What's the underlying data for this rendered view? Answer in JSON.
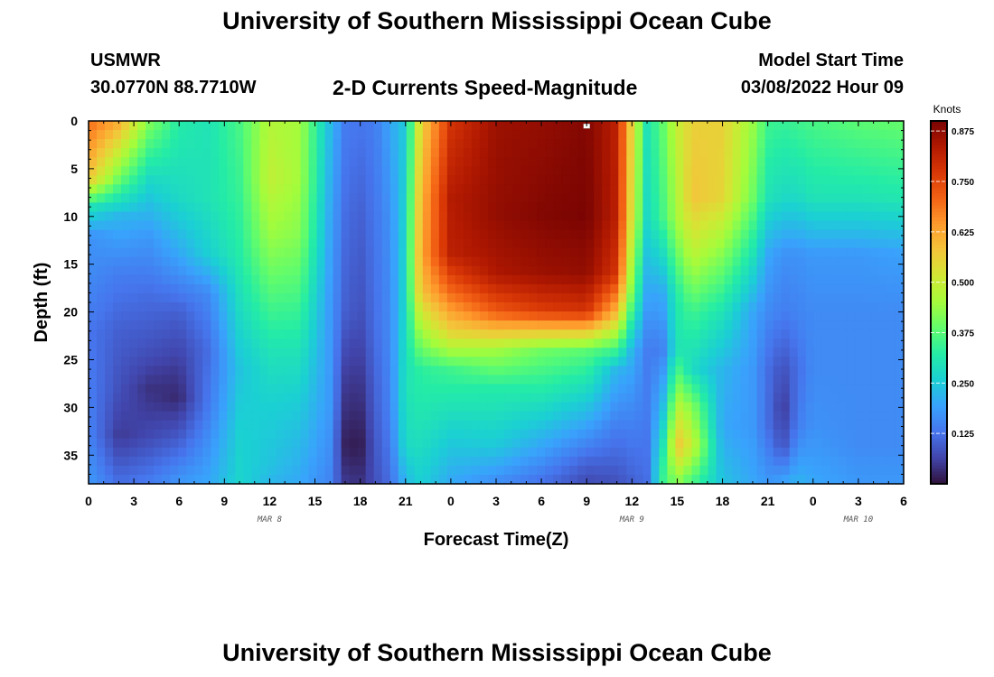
{
  "header": {
    "main_title": "University of Southern Mississippi Ocean Cube",
    "station": "USMWR",
    "coords": "30.0770N  88.7710W",
    "chart_title": "2-D Currents Speed-Magnitude",
    "start_label": "Model Start Time",
    "start_value": "03/08/2022 Hour 09"
  },
  "footer": {
    "main_title": "University of Southern Mississippi Ocean Cube"
  },
  "chart_data": {
    "type": "heatmap",
    "title": "2-D Currents Speed-Magnitude",
    "xlabel": "Forecast Time(Z)",
    "ylabel": "Depth (ft)",
    "x_tick_labels": [
      "0",
      "3",
      "6",
      "9",
      "12",
      "15",
      "18",
      "21",
      "0",
      "3",
      "6",
      "9",
      "12",
      "15",
      "18",
      "21",
      "0",
      "3",
      "6"
    ],
    "x_range_hours": [
      0,
      54
    ],
    "day_labels": [
      {
        "text": "MAR 8",
        "hour": 12
      },
      {
        "text": "MAR 9",
        "hour": 36
      },
      {
        "text": "MAR 10",
        "hour": 51
      }
    ],
    "y_ticks": [
      0,
      5,
      10,
      15,
      20,
      25,
      30,
      35
    ],
    "y_range_ft": [
      0,
      38
    ],
    "y_inverted": true,
    "colorbar": {
      "unit": "Knots",
      "ticks": [
        0.125,
        0.25,
        0.375,
        0.5,
        0.625,
        0.75,
        0.875
      ],
      "tick_labels": [
        "0.125",
        "0.250",
        "0.375",
        "0.500",
        "0.625",
        "0.750",
        "0.875"
      ],
      "range": [
        0.0,
        0.9
      ],
      "colormap": [
        "#30123b",
        "#4145ab",
        "#4675ed",
        "#39a2fc",
        "#1bcfd4",
        "#24eca6",
        "#61fc6c",
        "#a4fc3b",
        "#d1e834",
        "#f3c63a",
        "#fe9b2d",
        "#f36315",
        "#d93806",
        "#b11901",
        "#7a0402"
      ]
    },
    "marker": {
      "hour": 33,
      "depth_ft": 0.3
    },
    "time_profiles": [
      {
        "hour": 0,
        "profile": [
          [
            0,
            0.7
          ],
          [
            6,
            0.58
          ],
          [
            9,
            0.3
          ],
          [
            12,
            0.17
          ],
          [
            16,
            0.16
          ],
          [
            22,
            0.13
          ],
          [
            28,
            0.14
          ],
          [
            33,
            0.15
          ],
          [
            38,
            0.18
          ]
        ]
      },
      {
        "hour": 2,
        "profile": [
          [
            0,
            0.62
          ],
          [
            6,
            0.4
          ],
          [
            10,
            0.22
          ],
          [
            16,
            0.14
          ],
          [
            22,
            0.1
          ],
          [
            28,
            0.08
          ],
          [
            33,
            0.05
          ],
          [
            38,
            0.12
          ]
        ]
      },
      {
        "hour": 4,
        "profile": [
          [
            0,
            0.42
          ],
          [
            6,
            0.28
          ],
          [
            12,
            0.18
          ],
          [
            18,
            0.12
          ],
          [
            24,
            0.08
          ],
          [
            28,
            0.04
          ],
          [
            33,
            0.07
          ],
          [
            38,
            0.14
          ]
        ]
      },
      {
        "hour": 6,
        "profile": [
          [
            0,
            0.32
          ],
          [
            8,
            0.28
          ],
          [
            14,
            0.2
          ],
          [
            20,
            0.1
          ],
          [
            26,
            0.05
          ],
          [
            29,
            0.03
          ],
          [
            33,
            0.09
          ],
          [
            38,
            0.18
          ]
        ]
      },
      {
        "hour": 8,
        "profile": [
          [
            0,
            0.3
          ],
          [
            8,
            0.3
          ],
          [
            14,
            0.26
          ],
          [
            18,
            0.16
          ],
          [
            24,
            0.12
          ],
          [
            30,
            0.14
          ],
          [
            35,
            0.18
          ],
          [
            38,
            0.2
          ]
        ]
      },
      {
        "hour": 10,
        "profile": [
          [
            0,
            0.36
          ],
          [
            8,
            0.34
          ],
          [
            14,
            0.32
          ],
          [
            20,
            0.28
          ],
          [
            26,
            0.24
          ],
          [
            32,
            0.26
          ],
          [
            38,
            0.27
          ]
        ]
      },
      {
        "hour": 12,
        "profile": [
          [
            0,
            0.47
          ],
          [
            6,
            0.49
          ],
          [
            12,
            0.44
          ],
          [
            18,
            0.37
          ],
          [
            24,
            0.3
          ],
          [
            30,
            0.26
          ],
          [
            36,
            0.24
          ],
          [
            38,
            0.22
          ]
        ]
      },
      {
        "hour": 14,
        "profile": [
          [
            0,
            0.45
          ],
          [
            6,
            0.45
          ],
          [
            12,
            0.42
          ],
          [
            18,
            0.36
          ],
          [
            24,
            0.3
          ],
          [
            30,
            0.25
          ],
          [
            38,
            0.2
          ]
        ]
      },
      {
        "hour": 16,
        "profile": [
          [
            0,
            0.23
          ],
          [
            10,
            0.2
          ],
          [
            20,
            0.18
          ],
          [
            30,
            0.18
          ],
          [
            38,
            0.15
          ]
        ]
      },
      {
        "hour": 17,
        "profile": [
          [
            0,
            0.14
          ],
          [
            10,
            0.12
          ],
          [
            20,
            0.1
          ],
          [
            26,
            0.06
          ],
          [
            30,
            0.04
          ],
          [
            34,
            0.02
          ],
          [
            38,
            0.05
          ]
        ]
      },
      {
        "hour": 18,
        "profile": [
          [
            0,
            0.13
          ],
          [
            10,
            0.1
          ],
          [
            20,
            0.08
          ],
          [
            26,
            0.05
          ],
          [
            30,
            0.03
          ],
          [
            34,
            0.01
          ],
          [
            38,
            0.04
          ]
        ]
      },
      {
        "hour": 19,
        "profile": [
          [
            0,
            0.14
          ],
          [
            12,
            0.13
          ],
          [
            22,
            0.12
          ],
          [
            30,
            0.1
          ],
          [
            38,
            0.08
          ]
        ]
      },
      {
        "hour": 20,
        "profile": [
          [
            0,
            0.2
          ],
          [
            10,
            0.17
          ],
          [
            20,
            0.16
          ],
          [
            30,
            0.15
          ],
          [
            38,
            0.12
          ]
        ]
      },
      {
        "hour": 21,
        "profile": [
          [
            0,
            0.25
          ],
          [
            10,
            0.27
          ],
          [
            20,
            0.28
          ],
          [
            28,
            0.3
          ],
          [
            34,
            0.28
          ],
          [
            38,
            0.22
          ]
        ]
      },
      {
        "hour": 22,
        "profile": [
          [
            0,
            0.55
          ],
          [
            8,
            0.6
          ],
          [
            14,
            0.62
          ],
          [
            18,
            0.58
          ],
          [
            22,
            0.45
          ],
          [
            26,
            0.33
          ],
          [
            32,
            0.3
          ],
          [
            38,
            0.26
          ]
        ]
      },
      {
        "hour": 24,
        "profile": [
          [
            0,
            0.78
          ],
          [
            8,
            0.83
          ],
          [
            14,
            0.82
          ],
          [
            18,
            0.7
          ],
          [
            22,
            0.56
          ],
          [
            26,
            0.35
          ],
          [
            32,
            0.27
          ],
          [
            38,
            0.2
          ]
        ]
      },
      {
        "hour": 27,
        "profile": [
          [
            0,
            0.86
          ],
          [
            10,
            0.87
          ],
          [
            16,
            0.84
          ],
          [
            20,
            0.72
          ],
          [
            24,
            0.45
          ],
          [
            28,
            0.32
          ],
          [
            34,
            0.25
          ],
          [
            38,
            0.16
          ]
        ]
      },
      {
        "hour": 30,
        "profile": [
          [
            0,
            0.87
          ],
          [
            10,
            0.89
          ],
          [
            16,
            0.86
          ],
          [
            20,
            0.76
          ],
          [
            24,
            0.4
          ],
          [
            30,
            0.28
          ],
          [
            36,
            0.16
          ],
          [
            38,
            0.12
          ]
        ]
      },
      {
        "hour": 33,
        "profile": [
          [
            0,
            0.89
          ],
          [
            10,
            0.9
          ],
          [
            16,
            0.87
          ],
          [
            20,
            0.78
          ],
          [
            24,
            0.38
          ],
          [
            30,
            0.24
          ],
          [
            36,
            0.1
          ],
          [
            38,
            0.07
          ]
        ]
      },
      {
        "hour": 35,
        "profile": [
          [
            0,
            0.82
          ],
          [
            10,
            0.82
          ],
          [
            16,
            0.78
          ],
          [
            20,
            0.6
          ],
          [
            26,
            0.22
          ],
          [
            32,
            0.14
          ],
          [
            38,
            0.08
          ]
        ]
      },
      {
        "hour": 36,
        "profile": [
          [
            0,
            0.55
          ],
          [
            10,
            0.52
          ],
          [
            18,
            0.4
          ],
          [
            24,
            0.22
          ],
          [
            30,
            0.16
          ],
          [
            38,
            0.1
          ]
        ]
      },
      {
        "hour": 37,
        "profile": [
          [
            0,
            0.3
          ],
          [
            10,
            0.28
          ],
          [
            18,
            0.2
          ],
          [
            24,
            0.14
          ],
          [
            30,
            0.14
          ],
          [
            38,
            0.12
          ]
        ]
      },
      {
        "hour": 38,
        "profile": [
          [
            0,
            0.38
          ],
          [
            10,
            0.35
          ],
          [
            18,
            0.2
          ],
          [
            24,
            0.14
          ],
          [
            30,
            0.22
          ],
          [
            36,
            0.32
          ],
          [
            38,
            0.34
          ]
        ]
      },
      {
        "hour": 39,
        "profile": [
          [
            0,
            0.5
          ],
          [
            10,
            0.46
          ],
          [
            18,
            0.32
          ],
          [
            24,
            0.3
          ],
          [
            30,
            0.48
          ],
          [
            34,
            0.58
          ],
          [
            38,
            0.42
          ]
        ]
      },
      {
        "hour": 40,
        "profile": [
          [
            0,
            0.56
          ],
          [
            8,
            0.58
          ],
          [
            14,
            0.48
          ],
          [
            20,
            0.35
          ],
          [
            26,
            0.28
          ],
          [
            30,
            0.42
          ],
          [
            34,
            0.5
          ],
          [
            38,
            0.35
          ]
        ]
      },
      {
        "hour": 42,
        "profile": [
          [
            0,
            0.56
          ],
          [
            8,
            0.55
          ],
          [
            14,
            0.42
          ],
          [
            20,
            0.3
          ],
          [
            26,
            0.22
          ],
          [
            32,
            0.2
          ],
          [
            38,
            0.24
          ]
        ]
      },
      {
        "hour": 44,
        "profile": [
          [
            0,
            0.44
          ],
          [
            8,
            0.4
          ],
          [
            14,
            0.3
          ],
          [
            20,
            0.2
          ],
          [
            26,
            0.18
          ],
          [
            32,
            0.18
          ],
          [
            38,
            0.2
          ]
        ]
      },
      {
        "hour": 45,
        "profile": [
          [
            0,
            0.35
          ],
          [
            8,
            0.3
          ],
          [
            14,
            0.2
          ],
          [
            20,
            0.16
          ],
          [
            26,
            0.12
          ],
          [
            32,
            0.12
          ],
          [
            38,
            0.18
          ]
        ]
      },
      {
        "hour": 46,
        "profile": [
          [
            0,
            0.34
          ],
          [
            8,
            0.28
          ],
          [
            14,
            0.17
          ],
          [
            20,
            0.14
          ],
          [
            26,
            0.08
          ],
          [
            30,
            0.05
          ],
          [
            34,
            0.08
          ],
          [
            38,
            0.2
          ]
        ]
      },
      {
        "hour": 47,
        "profile": [
          [
            0,
            0.35
          ],
          [
            8,
            0.28
          ],
          [
            14,
            0.17
          ],
          [
            20,
            0.15
          ],
          [
            26,
            0.12
          ],
          [
            32,
            0.14
          ],
          [
            38,
            0.22
          ]
        ]
      },
      {
        "hour": 48,
        "profile": [
          [
            0,
            0.36
          ],
          [
            8,
            0.3
          ],
          [
            14,
            0.18
          ],
          [
            20,
            0.16
          ],
          [
            26,
            0.16
          ],
          [
            32,
            0.17
          ],
          [
            38,
            0.2
          ]
        ]
      },
      {
        "hour": 51,
        "profile": [
          [
            0,
            0.38
          ],
          [
            8,
            0.3
          ],
          [
            14,
            0.18
          ],
          [
            20,
            0.16
          ],
          [
            28,
            0.16
          ],
          [
            34,
            0.16
          ],
          [
            38,
            0.18
          ]
        ]
      },
      {
        "hour": 54,
        "profile": [
          [
            0,
            0.39
          ],
          [
            8,
            0.31
          ],
          [
            14,
            0.19
          ],
          [
            20,
            0.16
          ],
          [
            28,
            0.16
          ],
          [
            34,
            0.16
          ],
          [
            38,
            0.18
          ]
        ]
      }
    ]
  }
}
